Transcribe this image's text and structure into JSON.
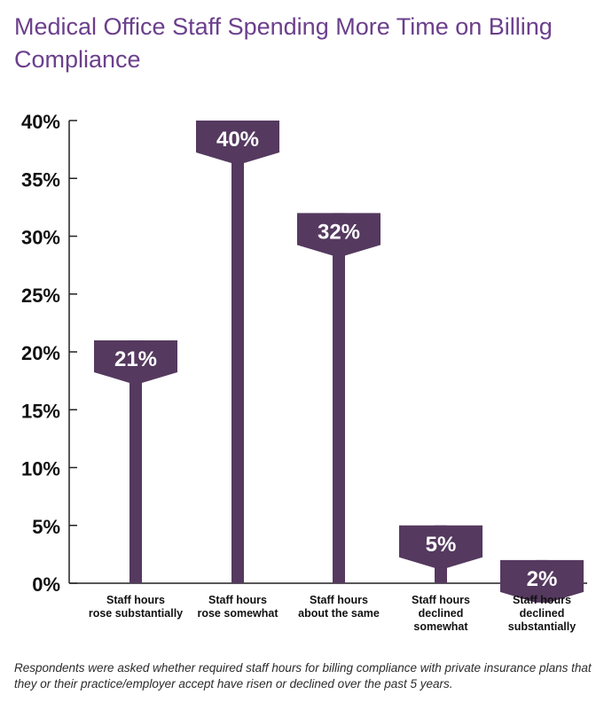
{
  "chart_data": {
    "type": "bar",
    "title": "Medical Office Staff Spending More Time on Billing Compliance",
    "xlabel": "",
    "ylabel": "",
    "ylim": [
      0,
      40
    ],
    "yticks": [
      "0%",
      "5%",
      "10%",
      "15%",
      "20%",
      "25%",
      "30%",
      "35%",
      "40%"
    ],
    "categories": [
      [
        "Staff hours",
        "rose substantially"
      ],
      [
        "Staff hours",
        "rose somewhat"
      ],
      [
        "Staff hours",
        "about the same"
      ],
      [
        "Staff hours",
        "declined",
        "somewhat"
      ],
      [
        "Staff hours",
        "declined",
        "substantially"
      ]
    ],
    "values": [
      21,
      40,
      32,
      5,
      2
    ],
    "value_labels": [
      "21%",
      "40%",
      "32%",
      "5%",
      "2%"
    ],
    "grid": false
  },
  "footnote": "Respondents were asked whether required staff hours for billing compliance with private insurance plans that they or their practice/employer accept have risen or declined over the past 5 years.",
  "colors": {
    "bar": "#55395f",
    "title": "#6b3f8c",
    "axis": "#222222"
  }
}
